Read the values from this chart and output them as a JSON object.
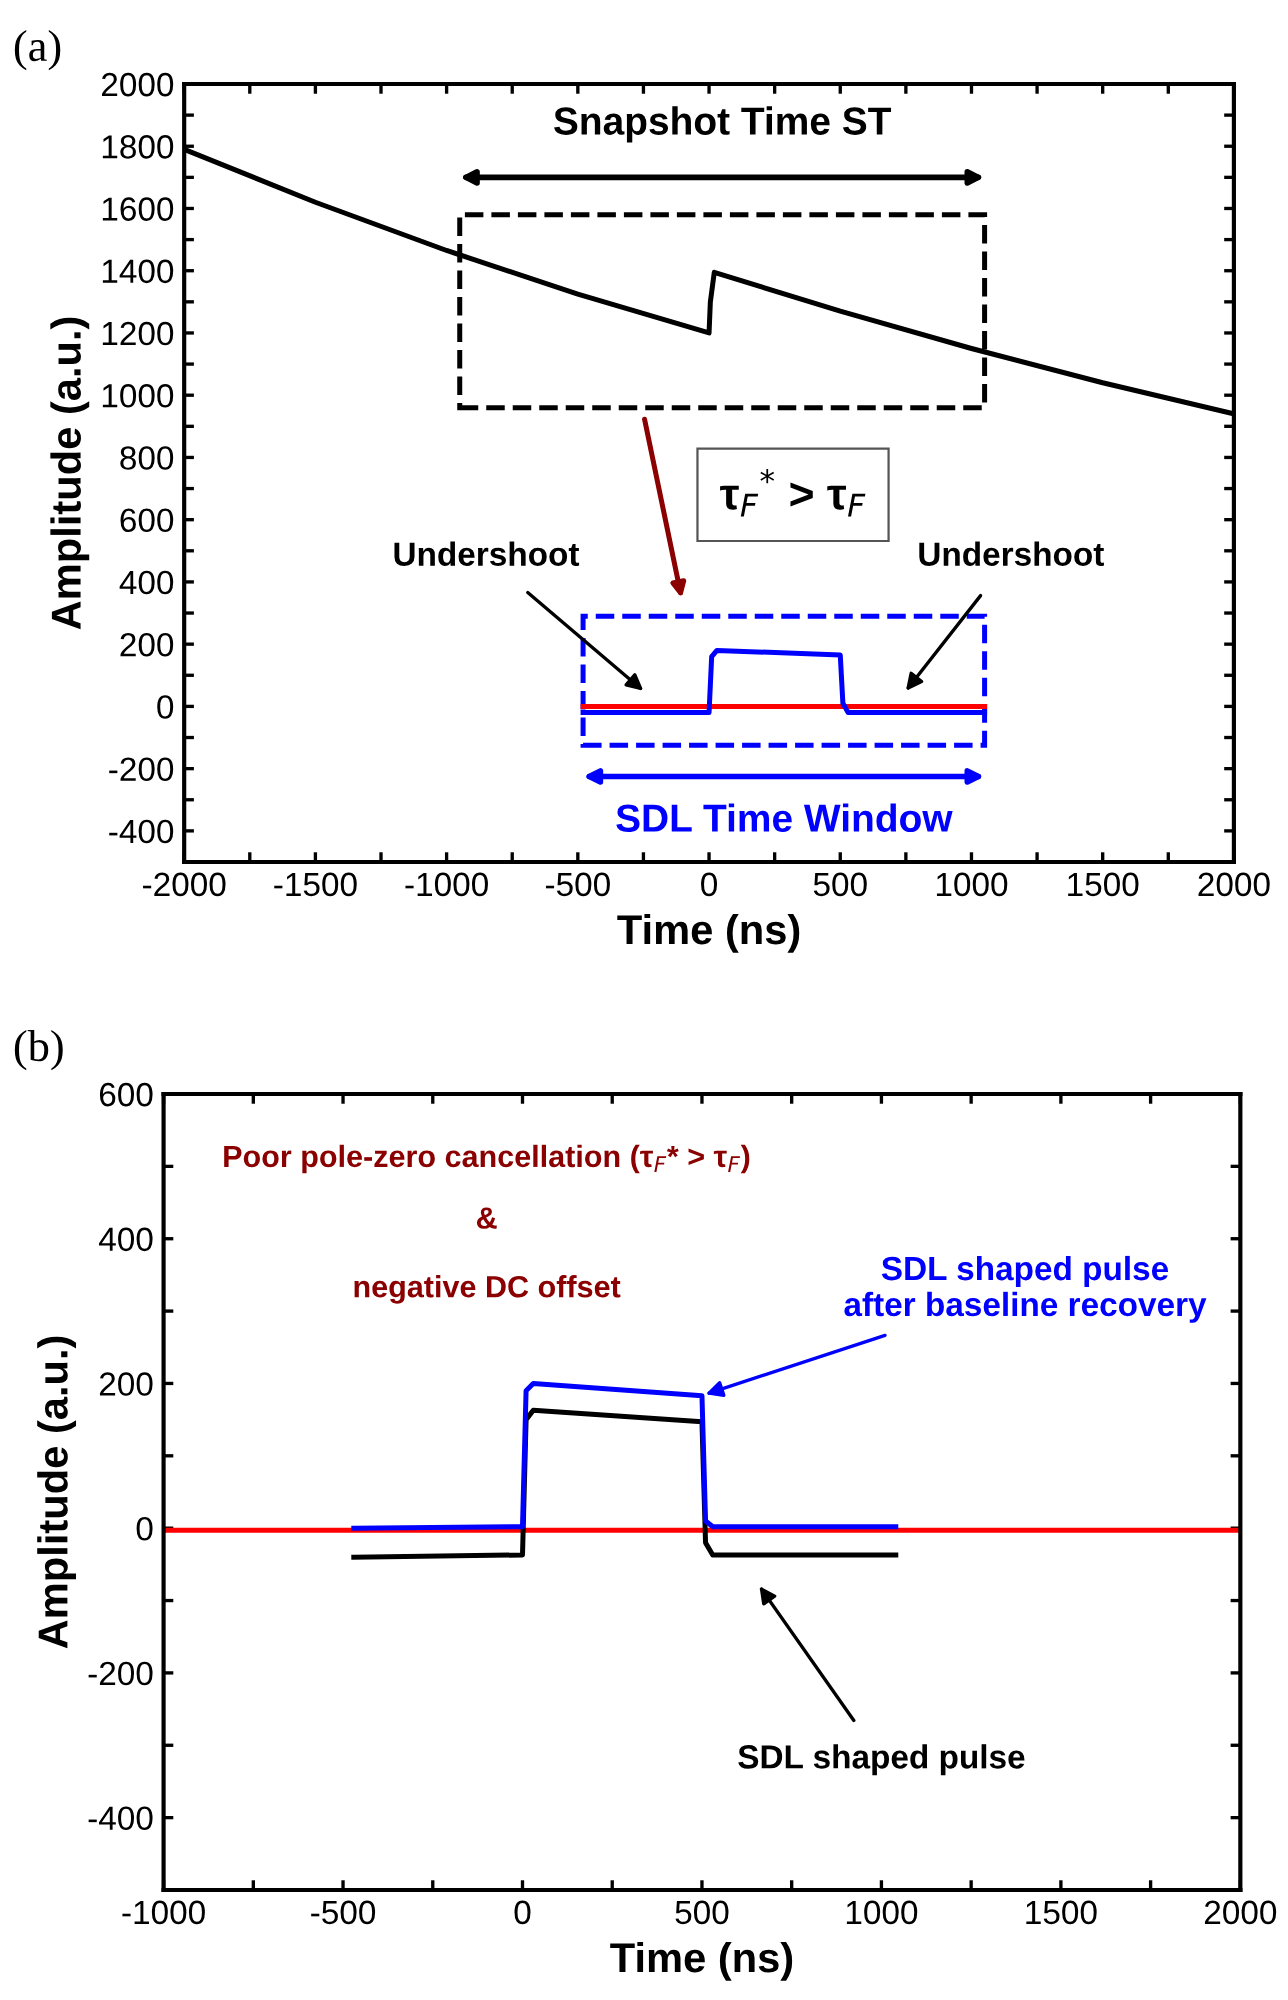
{
  "chart_data": [
    {
      "type": "line",
      "xlabel": "Time (ns)",
      "ylabel": "Amplitude (a.u.)",
      "xlim": [
        -2000,
        2000
      ],
      "ylim": [
        -500,
        2000
      ],
      "xticks": [
        -2000,
        {
          "value": -1750,
          "label": null
        },
        -1500,
        {
          "value": -1250,
          "label": null
        },
        -1000,
        {
          "value": -750,
          "label": null
        },
        -500,
        {
          "value": -250,
          "label": null
        },
        0,
        {
          "value": 250,
          "label": null
        },
        500,
        {
          "value": 750,
          "label": null
        },
        1000,
        {
          "value": 1250,
          "label": null
        },
        1500,
        {
          "value": 1750,
          "label": null
        },
        2000
      ],
      "yticks": [
        {
          "value": -500,
          "label": null
        },
        -400,
        {
          "value": -300,
          "label": null
        },
        -200,
        {
          "value": -100,
          "label": null
        },
        0,
        {
          "value": 100,
          "label": null
        },
        200,
        {
          "value": 300,
          "label": null
        },
        400,
        {
          "value": 500,
          "label": null
        },
        600,
        {
          "value": 700,
          "label": null
        },
        800,
        {
          "value": 900,
          "label": null
        },
        1000,
        {
          "value": 1100,
          "label": null
        },
        1200,
        {
          "value": 1300,
          "label": null
        },
        1400,
        {
          "value": 1500,
          "label": null
        },
        1600,
        {
          "value": 1700,
          "label": null
        },
        1800,
        {
          "value": 1900,
          "label": null
        },
        2000
      ],
      "grid": false,
      "legend": false,
      "marker": "none",
      "line_style": "solid",
      "series": [
        {
          "color": "#000000",
          "x": [
            -2000,
            -1500,
            -1000,
            -500,
            0,
            5,
            20,
            500,
            1000,
            1500,
            2000
          ],
          "values": [
            1790,
            1620,
            1465,
            1325,
            1200,
            1300,
            1395,
            1270,
            1150,
            1040,
            940
          ]
        },
        {
          "color": "#ff0000",
          "x": [
            -480,
            1050
          ],
          "values": [
            0,
            0
          ]
        },
        {
          "color": "#0000ff",
          "x": [
            -480,
            0,
            10,
            30,
            500,
            510,
            530,
            1050
          ],
          "values": [
            -20,
            -20,
            160,
            180,
            165,
            10,
            -20,
            -20
          ]
        }
      ],
      "annotations": [
        "(a)",
        "Snapshot Time ST",
        "τ$_{F}$$^{*}$ > τ$_{F}$",
        "SDL Time Window",
        "Undershoot",
        "Undershoot"
      ]
    },
    {
      "type": "line",
      "xlabel": "Time (ns)",
      "ylabel": "Amplitude (a.u.)",
      "xlim": [
        -1000,
        2000
      ],
      "ylim": [
        -500,
        600
      ],
      "xticks": [
        -1000,
        {
          "value": -750,
          "label": null
        },
        -500,
        {
          "value": -250,
          "label": null
        },
        0,
        {
          "value": 250,
          "label": null
        },
        500,
        {
          "value": 750,
          "label": null
        },
        1000,
        {
          "value": 1250,
          "label": null
        },
        1500,
        {
          "value": 1750,
          "label": null
        },
        2000
      ],
      "yticks": [
        {
          "value": -500,
          "label": null
        },
        -400,
        {
          "value": -300,
          "label": null
        },
        -200,
        {
          "value": -100,
          "label": null
        },
        0,
        {
          "value": 100,
          "label": null
        },
        200,
        {
          "value": 300,
          "label": null
        },
        400,
        {
          "value": 500,
          "label": null
        },
        600
      ],
      "grid": false,
      "legend": false,
      "marker": "none",
      "line_style": "solid",
      "series": [
        {
          "color": "#000000",
          "x": [
            -470,
            0,
            10,
            30,
            500,
            510,
            530,
            1040
          ],
          "values": [
            -40,
            -37,
            150,
            163,
            147,
            -20,
            -37,
            -37
          ]
        },
        {
          "color": "#0000ff",
          "x": [
            -470,
            0,
            10,
            30,
            500,
            510,
            530,
            1040
          ],
          "values": [
            0,
            2,
            190,
            200,
            183,
            10,
            2,
            2
          ]
        },
        {
          "color": "#ff0000",
          "x": [
            -1000,
            2000
          ],
          "values": [
            -3,
            -3
          ]
        }
      ],
      "annotations": [
        "(b)",
        "Poor pole-zero cancellation (τ$_{F}$* > τ$_{F}$)",
        "&",
        "negative DC offset",
        {
          "text": "SDL shaped pulse\nafter baseline recovery",
          "x": 510,
          "y": 185
        },
        "SDL shaped pulse"
      ]
    }
  ]
}
